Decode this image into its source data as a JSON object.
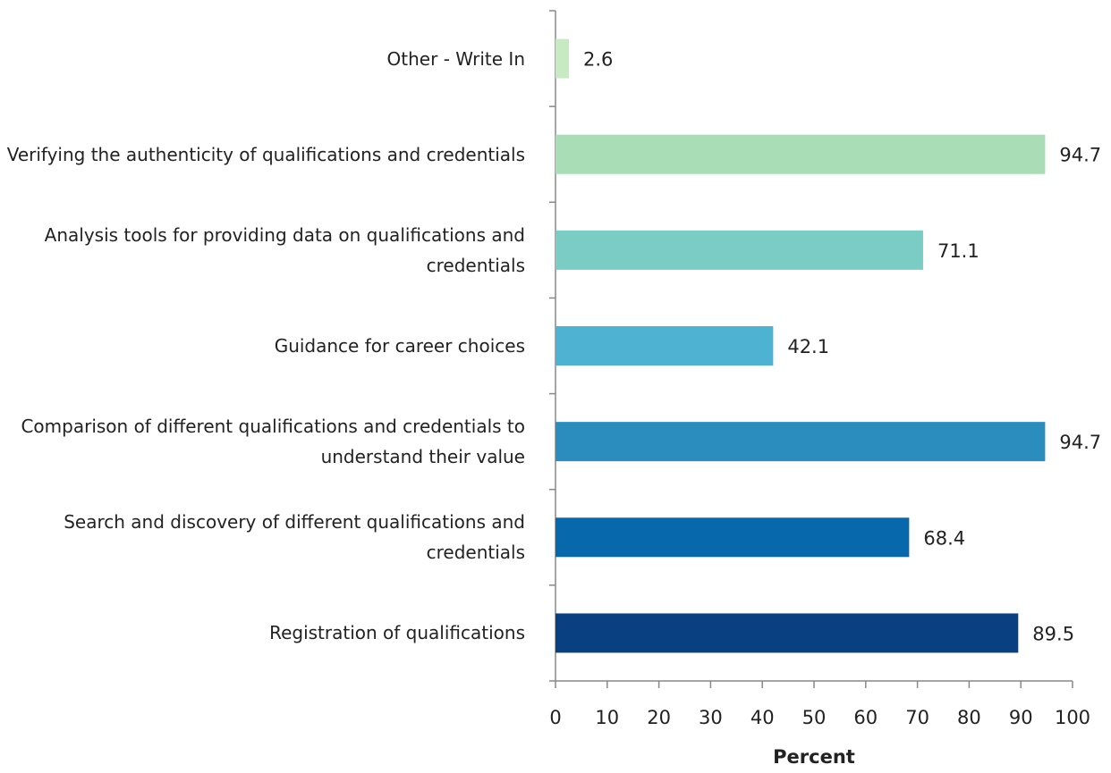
{
  "chart_data": {
    "type": "barh",
    "categories": [
      "Other - Write In",
      "Verifying the authenticity of qualifications and credentials",
      "Analysis tools for providing data on qualifications and credentials",
      "Guidance for career choices",
      "Comparison of different qualifications and credentials to understand their value",
      "Search and discovery of different qualifications and credentials",
      "Registration of qualifications"
    ],
    "values": [
      2.6,
      94.7,
      71.1,
      42.1,
      94.7,
      68.4,
      89.5
    ],
    "colors": [
      "#c7eac3",
      "#a8ddb5",
      "#7bccc4",
      "#4eb3d3",
      "#2b8cbe",
      "#0868ac",
      "#084081"
    ],
    "xlabel": "Percent",
    "xlim": [
      0,
      100
    ],
    "xticks": [
      0,
      10,
      20,
      30,
      40,
      50,
      60,
      70,
      80,
      90,
      100
    ]
  }
}
